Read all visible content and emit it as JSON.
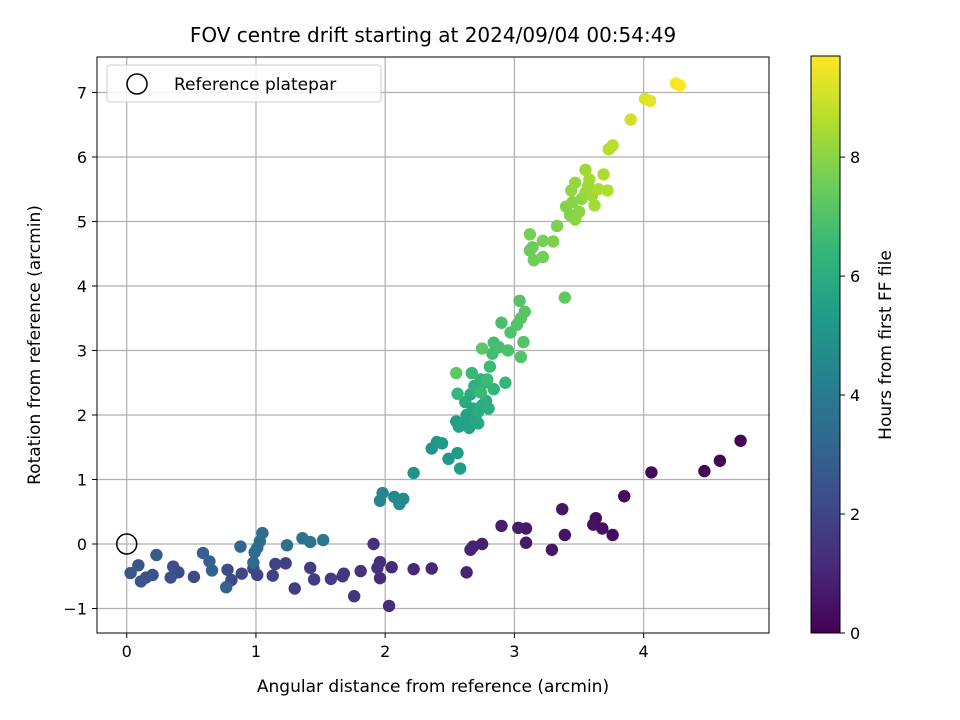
{
  "chart_data": {
    "type": "scatter",
    "title": "FOV centre drift starting at 2024/09/04 00:54:49",
    "xlabel": "Angular distance from reference (arcmin)",
    "ylabel": "Rotation from reference (arcmin)",
    "xlim": [
      -0.23,
      4.97
    ],
    "ylim": [
      -1.38,
      7.55
    ],
    "xticks": [
      0,
      1,
      2,
      3,
      4
    ],
    "yticks": [
      -1,
      0,
      1,
      2,
      3,
      4,
      5,
      6,
      7
    ],
    "xtick_labels": [
      "0",
      "1",
      "2",
      "3",
      "4"
    ],
    "ytick_labels": [
      "−1",
      "0",
      "1",
      "2",
      "3",
      "4",
      "5",
      "6",
      "7"
    ],
    "grid": true,
    "legend": {
      "location": "upper-left",
      "entries": [
        "Reference platepar"
      ]
    },
    "reference_point": {
      "x": 0,
      "y": 0,
      "marker": "hollow-circle"
    },
    "colorbar": {
      "label": "Hours from first FF file",
      "colormap": "viridis",
      "range": [
        0,
        9.7
      ],
      "ticks": [
        0,
        2,
        4,
        6,
        8
      ],
      "tick_labels": [
        "0",
        "2",
        "4",
        "6",
        "8"
      ]
    },
    "series": [
      {
        "color_by": "hours",
        "points": [
          {
            "x": 4.75,
            "y": 1.6,
            "c": 0.05
          },
          {
            "x": 4.59,
            "y": 1.29,
            "c": 0.1
          },
          {
            "x": 4.47,
            "y": 1.13,
            "c": 0.15
          },
          {
            "x": 4.06,
            "y": 1.11,
            "c": 0.2
          },
          {
            "x": 3.85,
            "y": 0.74,
            "c": 0.25
          },
          {
            "x": 3.76,
            "y": 0.14,
            "c": 0.3
          },
          {
            "x": 3.68,
            "y": 0.24,
            "c": 0.35
          },
          {
            "x": 3.63,
            "y": 0.4,
            "c": 0.4
          },
          {
            "x": 3.61,
            "y": 0.3,
            "c": 0.45
          },
          {
            "x": 3.39,
            "y": 0.14,
            "c": 0.5
          },
          {
            "x": 3.37,
            "y": 0.54,
            "c": 0.55
          },
          {
            "x": 3.29,
            "y": -0.09,
            "c": 0.6
          },
          {
            "x": 3.09,
            "y": 0.02,
            "c": 0.65
          },
          {
            "x": 3.09,
            "y": 0.24,
            "c": 0.7
          },
          {
            "x": 3.03,
            "y": 0.25,
            "c": 0.75
          },
          {
            "x": 2.9,
            "y": 0.28,
            "c": 0.8
          },
          {
            "x": 2.75,
            "y": 0.0,
            "c": 0.85
          },
          {
            "x": 2.68,
            "y": -0.04,
            "c": 0.9
          },
          {
            "x": 2.66,
            "y": -0.09,
            "c": 0.95
          },
          {
            "x": 2.63,
            "y": -0.44,
            "c": 1.0
          },
          {
            "x": 2.36,
            "y": -0.38,
            "c": 1.05
          },
          {
            "x": 2.22,
            "y": -0.39,
            "c": 1.1
          },
          {
            "x": 2.05,
            "y": -0.36,
            "c": 1.15
          },
          {
            "x": 2.03,
            "y": -0.96,
            "c": 1.2
          },
          {
            "x": 1.96,
            "y": -0.53,
            "c": 1.25
          },
          {
            "x": 1.96,
            "y": -0.28,
            "c": 1.3
          },
          {
            "x": 1.94,
            "y": -0.37,
            "c": 1.35
          },
          {
            "x": 1.91,
            "y": 0.0,
            "c": 1.4
          },
          {
            "x": 1.81,
            "y": -0.42,
            "c": 1.45
          },
          {
            "x": 1.76,
            "y": -0.81,
            "c": 1.5
          },
          {
            "x": 1.68,
            "y": -0.46,
            "c": 1.55
          },
          {
            "x": 1.67,
            "y": -0.5,
            "c": 1.6
          },
          {
            "x": 1.58,
            "y": -0.54,
            "c": 1.65
          },
          {
            "x": 1.45,
            "y": -0.55,
            "c": 1.7
          },
          {
            "x": 1.42,
            "y": -0.37,
            "c": 1.75
          },
          {
            "x": 1.3,
            "y": -0.69,
            "c": 1.8
          },
          {
            "x": 1.23,
            "y": -0.3,
            "c": 1.85
          },
          {
            "x": 1.15,
            "y": -0.31,
            "c": 1.9
          },
          {
            "x": 1.13,
            "y": -0.49,
            "c": 1.95
          },
          {
            "x": 1.01,
            "y": -0.48,
            "c": 2.0
          },
          {
            "x": 0.98,
            "y": -0.38,
            "c": 2.05
          },
          {
            "x": 0.89,
            "y": -0.46,
            "c": 2.1
          },
          {
            "x": 0.81,
            "y": -0.56,
            "c": 2.15
          },
          {
            "x": 0.78,
            "y": -0.4,
            "c": 2.2
          },
          {
            "x": 0.52,
            "y": -0.51,
            "c": 2.25
          },
          {
            "x": 0.4,
            "y": -0.44,
            "c": 2.3
          },
          {
            "x": 0.36,
            "y": -0.35,
            "c": 2.35
          },
          {
            "x": 0.34,
            "y": -0.52,
            "c": 2.4
          },
          {
            "x": 0.2,
            "y": -0.48,
            "c": 2.45
          },
          {
            "x": 0.15,
            "y": -0.52,
            "c": 2.5
          },
          {
            "x": 0.11,
            "y": -0.58,
            "c": 2.55
          },
          {
            "x": 0.09,
            "y": -0.33,
            "c": 2.6
          },
          {
            "x": 0.03,
            "y": -0.45,
            "c": 2.65
          },
          {
            "x": 0.23,
            "y": -0.17,
            "c": 2.8
          },
          {
            "x": 0.59,
            "y": -0.14,
            "c": 2.9
          },
          {
            "x": 0.64,
            "y": -0.27,
            "c": 3.0
          },
          {
            "x": 0.66,
            "y": -0.41,
            "c": 3.05
          },
          {
            "x": 0.77,
            "y": -0.67,
            "c": 3.1
          },
          {
            "x": 0.88,
            "y": -0.04,
            "c": 3.2
          },
          {
            "x": 0.98,
            "y": -0.29,
            "c": 3.3
          },
          {
            "x": 0.99,
            "y": -0.13,
            "c": 3.35
          },
          {
            "x": 1.01,
            "y": -0.06,
            "c": 3.4
          },
          {
            "x": 1.03,
            "y": 0.04,
            "c": 3.45
          },
          {
            "x": 1.05,
            "y": 0.17,
            "c": 3.5
          },
          {
            "x": 1.24,
            "y": -0.02,
            "c": 3.6
          },
          {
            "x": 1.36,
            "y": 0.09,
            "c": 3.7
          },
          {
            "x": 1.42,
            "y": 0.03,
            "c": 3.8
          },
          {
            "x": 1.52,
            "y": 0.06,
            "c": 3.9
          },
          {
            "x": 1.96,
            "y": 0.67,
            "c": 4.4
          },
          {
            "x": 1.98,
            "y": 0.79,
            "c": 4.5
          },
          {
            "x": 2.07,
            "y": 0.73,
            "c": 4.6
          },
          {
            "x": 2.11,
            "y": 0.62,
            "c": 4.7
          },
          {
            "x": 2.14,
            "y": 0.7,
            "c": 4.75
          },
          {
            "x": 2.22,
            "y": 1.1,
            "c": 4.9
          },
          {
            "x": 2.36,
            "y": 1.48,
            "c": 5.05
          },
          {
            "x": 2.4,
            "y": 1.58,
            "c": 5.1
          },
          {
            "x": 2.44,
            "y": 1.56,
            "c": 5.15
          },
          {
            "x": 2.49,
            "y": 1.32,
            "c": 5.2
          },
          {
            "x": 2.56,
            "y": 1.41,
            "c": 5.3
          },
          {
            "x": 2.58,
            "y": 1.17,
            "c": 5.35
          },
          {
            "x": 2.55,
            "y": 1.9,
            "c": 5.45
          },
          {
            "x": 2.57,
            "y": 1.82,
            "c": 5.5
          },
          {
            "x": 2.61,
            "y": 1.88,
            "c": 5.55
          },
          {
            "x": 2.63,
            "y": 2.0,
            "c": 5.6
          },
          {
            "x": 2.65,
            "y": 1.8,
            "c": 5.65
          },
          {
            "x": 2.68,
            "y": 2.1,
            "c": 5.7
          },
          {
            "x": 2.7,
            "y": 1.93,
            "c": 5.75
          },
          {
            "x": 2.72,
            "y": 1.87,
            "c": 5.8
          },
          {
            "x": 2.62,
            "y": 2.2,
            "c": 5.85
          },
          {
            "x": 2.66,
            "y": 2.32,
            "c": 5.9
          },
          {
            "x": 2.72,
            "y": 2.05,
            "c": 5.95
          },
          {
            "x": 2.75,
            "y": 2.15,
            "c": 6.0
          },
          {
            "x": 2.78,
            "y": 2.22,
            "c": 6.05
          },
          {
            "x": 2.8,
            "y": 2.1,
            "c": 6.1
          },
          {
            "x": 2.71,
            "y": 2.38,
            "c": 6.15
          },
          {
            "x": 2.69,
            "y": 2.45,
            "c": 6.2
          },
          {
            "x": 2.74,
            "y": 2.55,
            "c": 6.25
          },
          {
            "x": 2.77,
            "y": 2.5,
            "c": 6.3
          },
          {
            "x": 2.84,
            "y": 2.4,
            "c": 6.35
          },
          {
            "x": 2.93,
            "y": 2.5,
            "c": 6.4
          },
          {
            "x": 2.56,
            "y": 2.33,
            "c": 6.45
          },
          {
            "x": 2.67,
            "y": 2.65,
            "c": 6.5
          },
          {
            "x": 2.74,
            "y": 2.35,
            "c": 6.55
          },
          {
            "x": 2.79,
            "y": 2.55,
            "c": 6.6
          },
          {
            "x": 2.81,
            "y": 2.75,
            "c": 6.65
          },
          {
            "x": 2.83,
            "y": 2.95,
            "c": 6.7
          },
          {
            "x": 2.84,
            "y": 3.12,
            "c": 6.75
          },
          {
            "x": 2.88,
            "y": 3.05,
            "c": 6.8
          },
          {
            "x": 2.9,
            "y": 3.43,
            "c": 6.85
          },
          {
            "x": 2.95,
            "y": 3.0,
            "c": 6.9
          },
          {
            "x": 2.97,
            "y": 3.28,
            "c": 6.95
          },
          {
            "x": 3.02,
            "y": 3.4,
            "c": 7.0
          },
          {
            "x": 3.05,
            "y": 2.9,
            "c": 7.0
          },
          {
            "x": 3.07,
            "y": 3.13,
            "c": 7.05
          },
          {
            "x": 3.04,
            "y": 3.77,
            "c": 7.1
          },
          {
            "x": 3.05,
            "y": 3.5,
            "c": 7.1
          },
          {
            "x": 3.08,
            "y": 3.6,
            "c": 7.15
          },
          {
            "x": 2.75,
            "y": 3.03,
            "c": 7.2
          },
          {
            "x": 2.55,
            "y": 2.65,
            "c": 7.25
          },
          {
            "x": 3.39,
            "y": 3.82,
            "c": 7.3
          },
          {
            "x": 3.12,
            "y": 4.55,
            "c": 7.45
          },
          {
            "x": 3.14,
            "y": 4.6,
            "c": 7.5
          },
          {
            "x": 3.15,
            "y": 4.4,
            "c": 7.55
          },
          {
            "x": 3.22,
            "y": 4.45,
            "c": 7.6
          },
          {
            "x": 3.12,
            "y": 4.8,
            "c": 7.65
          },
          {
            "x": 3.22,
            "y": 4.7,
            "c": 7.7
          },
          {
            "x": 3.3,
            "y": 4.69,
            "c": 7.75
          },
          {
            "x": 3.33,
            "y": 4.93,
            "c": 7.8
          },
          {
            "x": 3.4,
            "y": 5.23,
            "c": 7.85
          },
          {
            "x": 3.43,
            "y": 5.1,
            "c": 7.9
          },
          {
            "x": 3.45,
            "y": 5.3,
            "c": 7.95
          },
          {
            "x": 3.47,
            "y": 5.03,
            "c": 8.0
          },
          {
            "x": 3.5,
            "y": 5.15,
            "c": 8.0
          },
          {
            "x": 3.52,
            "y": 5.35,
            "c": 8.05
          },
          {
            "x": 3.44,
            "y": 5.48,
            "c": 8.1
          },
          {
            "x": 3.47,
            "y": 5.6,
            "c": 8.15
          },
          {
            "x": 3.55,
            "y": 5.45,
            "c": 8.2
          },
          {
            "x": 3.57,
            "y": 5.55,
            "c": 8.25
          },
          {
            "x": 3.6,
            "y": 5.4,
            "c": 8.3
          },
          {
            "x": 3.55,
            "y": 5.8,
            "c": 8.3
          },
          {
            "x": 3.62,
            "y": 5.25,
            "c": 8.35
          },
          {
            "x": 3.58,
            "y": 5.65,
            "c": 8.4
          },
          {
            "x": 3.65,
            "y": 5.5,
            "c": 8.45
          },
          {
            "x": 3.69,
            "y": 5.73,
            "c": 8.5
          },
          {
            "x": 3.72,
            "y": 5.48,
            "c": 8.55
          },
          {
            "x": 3.73,
            "y": 6.12,
            "c": 8.6
          },
          {
            "x": 3.76,
            "y": 6.18,
            "c": 8.7
          },
          {
            "x": 3.9,
            "y": 6.58,
            "c": 9.0
          },
          {
            "x": 4.01,
            "y": 6.9,
            "c": 9.2
          },
          {
            "x": 4.05,
            "y": 6.87,
            "c": 9.3
          },
          {
            "x": 4.25,
            "y": 7.14,
            "c": 9.6
          },
          {
            "x": 4.28,
            "y": 7.11,
            "c": 9.7
          }
        ]
      }
    ]
  }
}
